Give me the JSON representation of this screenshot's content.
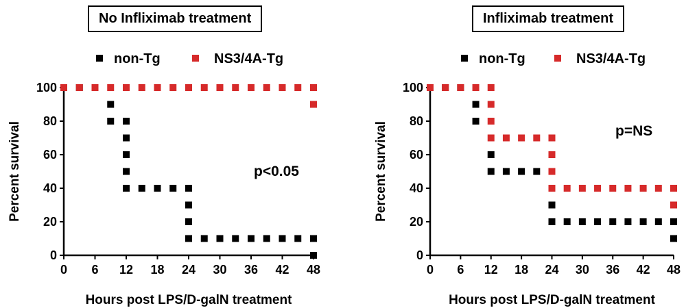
{
  "chart_data": [
    {
      "type": "line",
      "title": "No Infliximab treatment",
      "xlabel": "Hours post LPS/D-galN treatment",
      "ylabel": "Percent survival",
      "xlim": [
        0,
        48
      ],
      "ylim": [
        0,
        100
      ],
      "xticks": [
        "0",
        "6",
        "12",
        "18",
        "24",
        "30",
        "36",
        "42",
        "48"
      ],
      "yticks": [
        "0",
        "20",
        "40",
        "60",
        "80",
        "100"
      ],
      "legend_position": "top",
      "annotation": "p<0.05",
      "series": [
        {
          "name": "non-Tg",
          "color": "#000000",
          "x": [
            0,
            3,
            6,
            9,
            9,
            12,
            12,
            12,
            12,
            12,
            15,
            18,
            21,
            24,
            24,
            24,
            24,
            27,
            30,
            33,
            36,
            39,
            42,
            45,
            48,
            48
          ],
          "y": [
            100,
            100,
            100,
            90,
            80,
            80,
            70,
            60,
            50,
            40,
            40,
            40,
            40,
            40,
            30,
            20,
            10,
            10,
            10,
            10,
            10,
            10,
            10,
            10,
            10,
            0
          ]
        },
        {
          "name": "NS3/4A-Tg",
          "color": "#d62a2a",
          "x": [
            0,
            3,
            6,
            9,
            12,
            15,
            18,
            21,
            24,
            27,
            30,
            33,
            36,
            39,
            42,
            45,
            48,
            48
          ],
          "y": [
            100,
            100,
            100,
            100,
            100,
            100,
            100,
            100,
            100,
            100,
            100,
            100,
            100,
            100,
            100,
            100,
            100,
            90
          ]
        }
      ]
    },
    {
      "type": "line",
      "title": "Infliximab treatment",
      "xlabel": "Hours post LPS/D-galN treatment",
      "ylabel": "Percent survival",
      "xlim": [
        0,
        48
      ],
      "ylim": [
        0,
        100
      ],
      "xticks": [
        "0",
        "6",
        "12",
        "18",
        "24",
        "30",
        "36",
        "42",
        "48"
      ],
      "yticks": [
        "0",
        "20",
        "40",
        "60",
        "80",
        "100"
      ],
      "legend_position": "top",
      "annotation": "p=NS",
      "series": [
        {
          "name": "non-Tg",
          "color": "#000000",
          "x": [
            0,
            3,
            6,
            9,
            9,
            12,
            12,
            15,
            18,
            21,
            24,
            24,
            27,
            30,
            33,
            36,
            39,
            42,
            45,
            48,
            48
          ],
          "y": [
            100,
            100,
            100,
            90,
            80,
            60,
            50,
            50,
            50,
            50,
            30,
            20,
            20,
            20,
            20,
            20,
            20,
            20,
            20,
            20,
            10
          ]
        },
        {
          "name": "NS3/4A-Tg",
          "color": "#d62a2a",
          "x": [
            0,
            3,
            6,
            9,
            12,
            12,
            12,
            12,
            15,
            18,
            21,
            24,
            24,
            24,
            24,
            27,
            30,
            33,
            36,
            39,
            42,
            45,
            48,
            48
          ],
          "y": [
            100,
            100,
            100,
            100,
            100,
            90,
            80,
            70,
            70,
            70,
            70,
            70,
            60,
            50,
            40,
            40,
            40,
            40,
            40,
            40,
            40,
            40,
            40,
            30
          ]
        }
      ]
    }
  ]
}
